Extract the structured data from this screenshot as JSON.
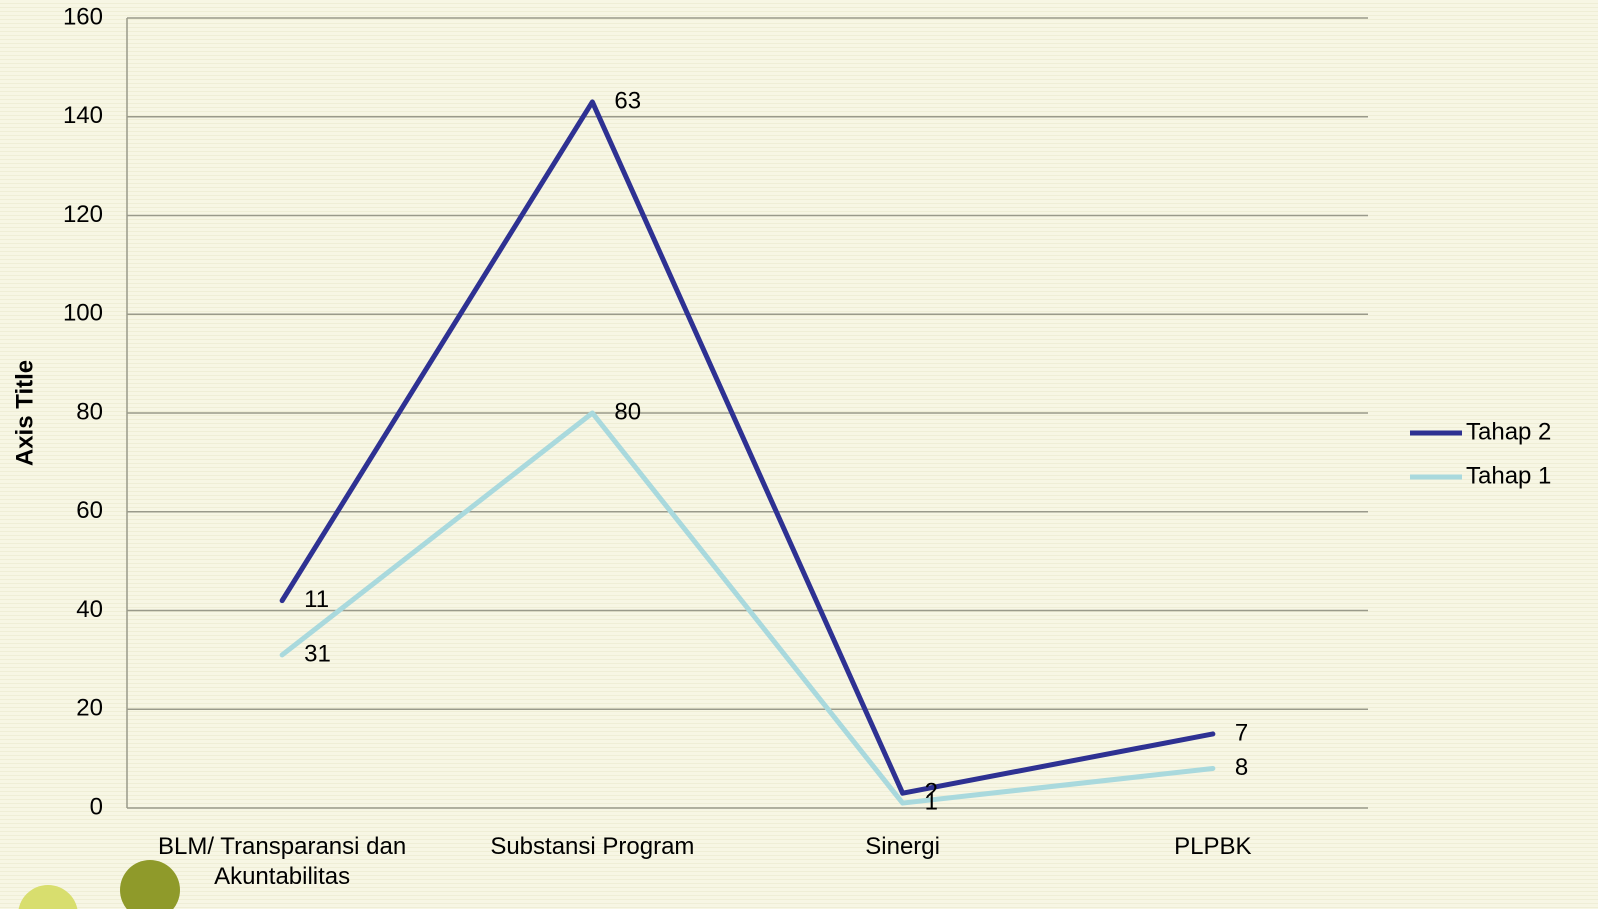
{
  "chart_data": {
    "type": "line",
    "stacked": true,
    "categories": [
      "BLM/ Transparansi dan Akuntabilitas",
      "Substansi Program",
      "Sinergi",
      "PLPBK"
    ],
    "series": [
      {
        "name": "Tahap 2",
        "color": "#2e3192",
        "values": [
          11,
          63,
          2,
          7
        ]
      },
      {
        "name": "Tahap 1",
        "color": "#a9d9dd",
        "values": [
          31,
          80,
          1,
          8
        ]
      }
    ],
    "y_label": "Axis Title",
    "ylim": [
      0,
      160
    ],
    "yticks": [
      0,
      20,
      40,
      60,
      80,
      100,
      120,
      140,
      160
    ],
    "grid": true,
    "legend": "right"
  }
}
